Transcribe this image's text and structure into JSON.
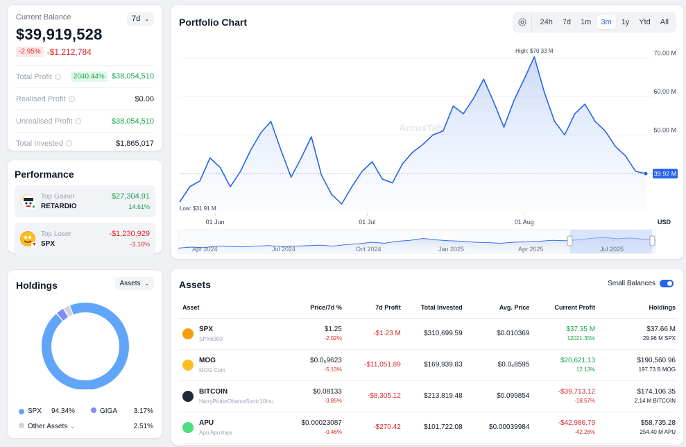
{
  "balance": {
    "label": "Current Balance",
    "period": "7d",
    "value": "$39,919,528",
    "change_pct": "-2.95%",
    "change_abs": "-$1,212,784",
    "rows": [
      {
        "label": "Total Profit",
        "badge": "2040.44%",
        "value": "$38,054,510",
        "color": "green"
      },
      {
        "label": "Realised Profit",
        "badge": "",
        "value": "$0.00",
        "color": "dark"
      },
      {
        "label": "Unrealised Profit",
        "badge": "",
        "value": "$38,054,510",
        "color": "green"
      },
      {
        "label": "Total Invested",
        "badge": "",
        "value": "$1,865,017",
        "color": "dark"
      }
    ]
  },
  "performance": {
    "title": "Performance",
    "top_gainer": {
      "label": "Top Gainer",
      "name": "RETARDIO",
      "value": "$27,304.91",
      "pct": "14.61%"
    },
    "top_loser": {
      "label": "Top Loser",
      "name": "SPX",
      "value": "-$1,230,929",
      "pct": "-3.16%"
    }
  },
  "holdings": {
    "title": "Holdings",
    "selector": "Assets",
    "items": [
      {
        "name": "SPX",
        "pct": "94.34%",
        "value": 94.34,
        "color": "#60a5fa"
      },
      {
        "name": "GIGA",
        "pct": "3.17%",
        "value": 3.17,
        "color": "#818cf8"
      },
      {
        "name": "Other Assets",
        "pct": "2.51%",
        "value": 2.51,
        "color": "#d1d5db"
      }
    ]
  },
  "portfolio": {
    "title": "Portfolio Chart",
    "ranges": [
      "24h",
      "7d",
      "1m",
      "3m",
      "1y",
      "Ytd",
      "All"
    ],
    "active_range": "3m",
    "watermark": "ArcusTab",
    "currency": "USD",
    "high_label": "High: $70.33 M",
    "low_label": "Low: $31.91 M",
    "current_label": "39.92 M",
    "x_ticks": [
      "01 Jun",
      "01 Jul",
      "01 Aug"
    ],
    "nav_ticks": [
      "Apr 2024",
      "Jul 2024",
      "Oct 2024",
      "Jan 2025",
      "Apr 2025",
      "Jul 2025"
    ]
  },
  "chart_data": {
    "type": "area",
    "title": "Portfolio Chart",
    "xlabel": "",
    "ylabel": "USD",
    "ylim": [
      30,
      73
    ],
    "y_ticks": [
      "50.00 M",
      "60.00 M",
      "70.00 M"
    ],
    "y_tick_values": [
      50,
      60,
      70
    ],
    "x_tick_labels": [
      "01 Jun",
      "01 Jul",
      "01 Aug"
    ],
    "x_tick_days": [
      7,
      37,
      68
    ],
    "grid": true,
    "series": [
      {
        "days": [
          0,
          2,
          4,
          6,
          8,
          10,
          12,
          14,
          16,
          18,
          20,
          22,
          24,
          26,
          28,
          30,
          32,
          34,
          36,
          38,
          40,
          42,
          44,
          46,
          48,
          50,
          52,
          54,
          56,
          58,
          60,
          62,
          64,
          66,
          68,
          70,
          72,
          74,
          76,
          78,
          80,
          82,
          84,
          86,
          88,
          90,
          92
        ],
        "values": [
          32.5,
          36.5,
          38.0,
          44.0,
          41.5,
          36.5,
          40.5,
          46.0,
          50.5,
          53.5,
          46.0,
          39.0,
          44.0,
          49.5,
          39.5,
          34.5,
          32.0,
          36.5,
          40.5,
          43.0,
          38.5,
          37.5,
          42.5,
          45.5,
          47.5,
          50.0,
          51.0,
          57.5,
          55.5,
          59.5,
          64.5,
          58.5,
          52.0,
          59.0,
          64.5,
          70.33,
          61.0,
          53.5,
          50.0,
          55.5,
          58.0,
          53.5,
          51.0,
          47.0,
          44.5,
          40.5,
          39.92
        ]
      }
    ],
    "high": 70.33,
    "low": 31.91,
    "current": 39.92
  },
  "assets": {
    "title": "Assets",
    "small_balances_label": "Small Balances",
    "columns": [
      "Asset",
      "Price/7d %",
      "7d Profit",
      "Total Invested",
      "Avg. Price",
      "Current Profit",
      "Holdings"
    ],
    "rows": [
      {
        "name": "SPX",
        "sub": "SPX6900",
        "price": "$1.25",
        "price_pct": "-2.02%",
        "profit7d": "-$1.23 M",
        "invested": "$310,699.59",
        "avg": "$0.010369",
        "cur_profit": "$37.35 M",
        "cur_pct": "12021.35%",
        "cur_color": "green",
        "holdings": "$37.66 M",
        "holdings_sub": "29.96 M SPX",
        "icon": "#f59e0b"
      },
      {
        "name": "MOG",
        "sub": "MOG Coin",
        "price": "$0.0₅9623",
        "price_pct": "-5.13%",
        "profit7d": "-$11,051.89",
        "invested": "$169,939.83",
        "avg": "$0.0₆8595",
        "cur_profit": "$20,621.13",
        "cur_pct": "12.13%",
        "cur_color": "green",
        "holdings": "$190,560.96",
        "holdings_sub": "197.73 B MOG",
        "icon": "#fbbf24"
      },
      {
        "name": "BITCOIN",
        "sub": "HarryPotterObamaSonic10Inu",
        "price": "$0.08133",
        "price_pct": "-3.85%",
        "profit7d": "-$8,305.12",
        "invested": "$213,819.48",
        "avg": "$0.099854",
        "cur_profit": "-$39,713.12",
        "cur_pct": "-18.57%",
        "cur_color": "red",
        "holdings": "$174,106.35",
        "holdings_sub": "2.14 M BITCOIN",
        "icon": "#1f2937"
      },
      {
        "name": "APU",
        "sub": "Apu Apustaja",
        "price": "$0.00023087",
        "price_pct": "-0.46%",
        "profit7d": "-$270.42",
        "invested": "$101,722.08",
        "avg": "$0.00039984",
        "cur_profit": "-$42,986.79",
        "cur_pct": "-42.26%",
        "cur_color": "red",
        "holdings": "$58,735.28",
        "holdings_sub": "254.40 M APU",
        "icon": "#4ade80"
      }
    ]
  }
}
